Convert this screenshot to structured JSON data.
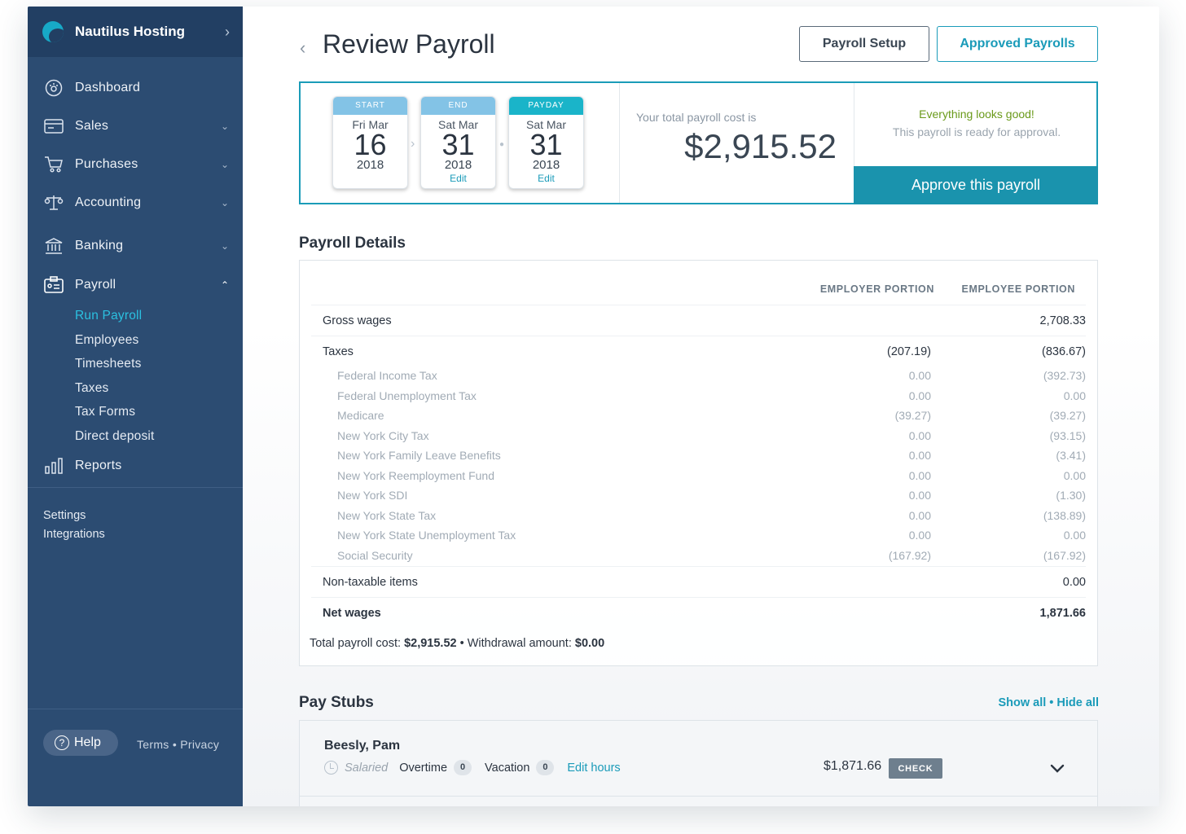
{
  "brand": {
    "name": "Nautilus Hosting"
  },
  "nav": [
    {
      "label": "Dashboard",
      "icon": "dashboard-icon"
    },
    {
      "label": "Sales",
      "icon": "sales-icon"
    },
    {
      "label": "Purchases",
      "icon": "cart-icon"
    },
    {
      "label": "Accounting",
      "icon": "scale-icon"
    },
    {
      "label": "Banking",
      "icon": "bank-icon"
    },
    {
      "label": "Payroll",
      "icon": "payroll-icon"
    },
    {
      "label": "Reports",
      "icon": "reports-icon"
    }
  ],
  "payroll_sub": [
    "Run Payroll",
    "Employees",
    "Timesheets",
    "Taxes",
    "Tax Forms",
    "Direct deposit"
  ],
  "side_links": {
    "settings": "Settings",
    "integrations": "Integrations"
  },
  "footer": {
    "help": "Help",
    "terms": "Terms",
    "sep": " • ",
    "privacy": "Privacy"
  },
  "header": {
    "title": "Review Payroll",
    "setup_btn": "Payroll Setup",
    "approved_btn": "Approved Payrolls"
  },
  "summary": {
    "start": {
      "cap": "START",
      "dow": "Fri Mar",
      "day": "16",
      "year": "2018"
    },
    "end": {
      "cap": "END",
      "dow": "Sat Mar",
      "day": "31",
      "year": "2018",
      "edit": "Edit"
    },
    "payday": {
      "cap": "PAYDAY",
      "dow": "Sat Mar",
      "day": "31",
      "year": "2018",
      "edit": "Edit"
    },
    "cost_label": "Your total payroll cost is",
    "cost_amount": "$2,915.52",
    "good_title": "Everything looks good!",
    "good_sub": "This payroll is ready for approval.",
    "approve_btn": "Approve this payroll"
  },
  "details": {
    "title": "Payroll Details",
    "col_employer": "EMPLOYER PORTION",
    "col_employee": "EMPLOYEE PORTION",
    "gross": {
      "name": "Gross wages",
      "employer": "",
      "employee": "2,708.33"
    },
    "taxes": {
      "name": "Taxes",
      "employer": "(207.19)",
      "employee": "(836.67)"
    },
    "tax_items": [
      {
        "name": "Federal Income Tax",
        "employer": "0.00",
        "employee": "(392.73)"
      },
      {
        "name": "Federal Unemployment Tax",
        "employer": "0.00",
        "employee": "0.00"
      },
      {
        "name": "Medicare",
        "employer": "(39.27)",
        "employee": "(39.27)"
      },
      {
        "name": "New York City Tax",
        "employer": "0.00",
        "employee": "(93.15)"
      },
      {
        "name": "New York Family Leave Benefits",
        "employer": "0.00",
        "employee": "(3.41)"
      },
      {
        "name": "New York Reemployment Fund",
        "employer": "0.00",
        "employee": "0.00"
      },
      {
        "name": "New York SDI",
        "employer": "0.00",
        "employee": "(1.30)"
      },
      {
        "name": "New York State Tax",
        "employer": "0.00",
        "employee": "(138.89)"
      },
      {
        "name": "New York State Unemployment Tax",
        "employer": "0.00",
        "employee": "0.00"
      },
      {
        "name": "Social Security",
        "employer": "(167.92)",
        "employee": "(167.92)"
      }
    ],
    "nontax": {
      "name": "Non-taxable items",
      "employer": "",
      "employee": "0.00"
    },
    "net": {
      "name": "Net wages",
      "employer": "",
      "employee": "1,871.66"
    },
    "totals": {
      "cost_label": "Total payroll cost:",
      "cost": "$2,915.52",
      "sep": "•",
      "withdrawal_label": "Withdrawal amount:",
      "withdrawal": "$0.00"
    }
  },
  "stubs": {
    "title": "Pay Stubs",
    "show_all": "Show all",
    "sep": " • ",
    "hide_all": "Hide all",
    "items": [
      {
        "name": "Beesly, Pam",
        "type": "Salaried",
        "overtime_label": "Overtime",
        "overtime": "0",
        "vacation_label": "Vacation",
        "vacation": "0",
        "edit": "Edit hours",
        "amount": "$1,871.66",
        "method": "CHECK"
      }
    ]
  },
  "colors": {
    "accent": "#1a9bb9",
    "sidebar": "#2c4c72",
    "approve": "#1a93ad",
    "good": "#6a9a1a"
  }
}
